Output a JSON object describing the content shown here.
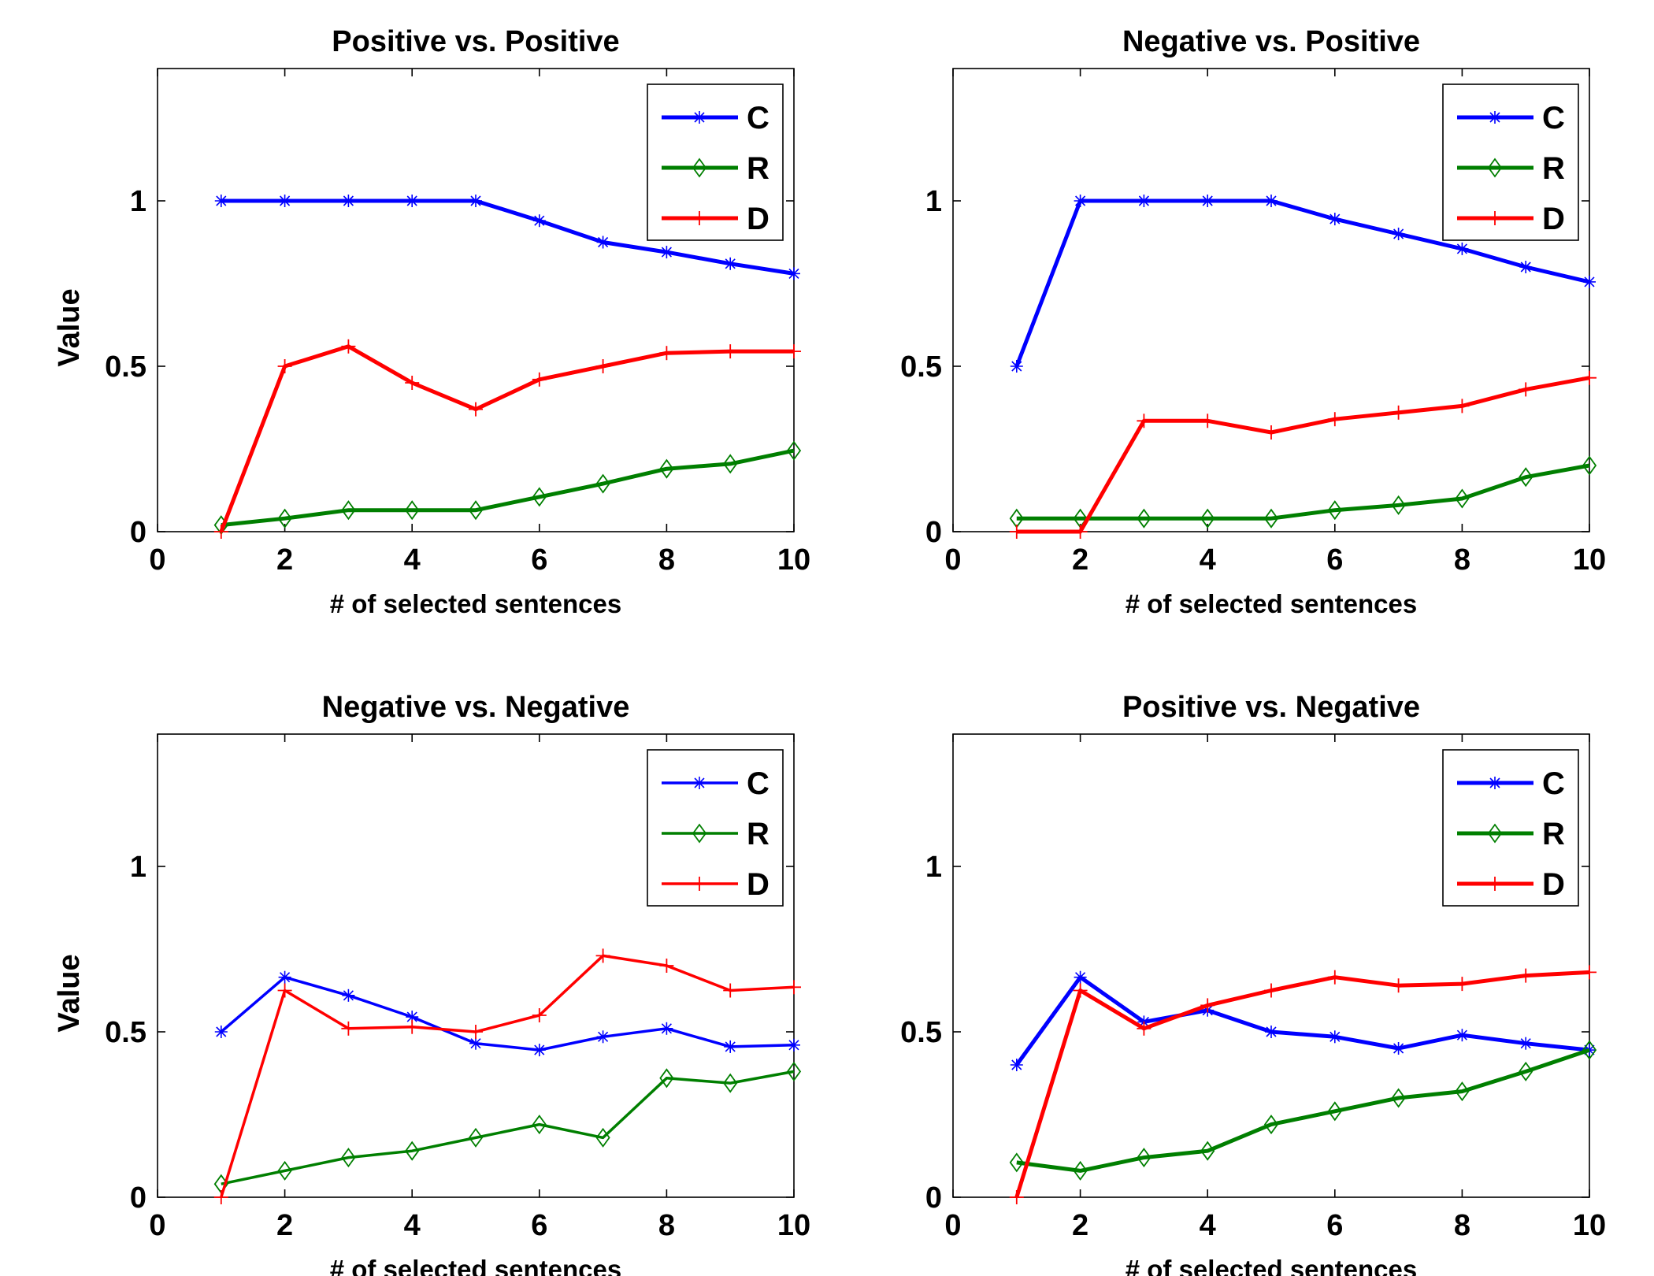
{
  "chart_data": [
    {
      "type": "line",
      "title": "Positive vs. Positive",
      "xlabel": "# of selected sentences",
      "ylabel": "Value",
      "xlim": [
        0,
        10
      ],
      "ylim": [
        0,
        1.4
      ],
      "xticks": [
        "0",
        "2",
        "4",
        "6",
        "8",
        "10"
      ],
      "yticks": [
        "0",
        "0.5",
        "1"
      ],
      "legend": "top-right",
      "grid": false,
      "x": [
        1,
        2,
        3,
        4,
        5,
        6,
        7,
        8,
        9,
        10
      ],
      "series": [
        {
          "name": "C",
          "color": "#0000ff",
          "marker": "asterisk",
          "values": [
            1.0,
            1.0,
            1.0,
            1.0,
            1.0,
            0.94,
            0.875,
            0.845,
            0.81,
            0.78
          ]
        },
        {
          "name": "R",
          "color": "#007f00",
          "marker": "diamond",
          "values": [
            0.02,
            0.04,
            0.065,
            0.065,
            0.065,
            0.105,
            0.145,
            0.19,
            0.205,
            0.245
          ]
        },
        {
          "name": "D",
          "color": "#ff0000",
          "marker": "plus",
          "values": [
            0.0,
            0.5,
            0.56,
            0.45,
            0.37,
            0.46,
            0.5,
            0.54,
            0.545,
            0.545
          ]
        }
      ]
    },
    {
      "type": "line",
      "title": "Negative vs. Positive",
      "xlabel": "# of selected sentences",
      "ylabel": "",
      "xlim": [
        0,
        10
      ],
      "ylim": [
        0,
        1.4
      ],
      "xticks": [
        "0",
        "2",
        "4",
        "6",
        "8",
        "10"
      ],
      "yticks": [
        "0",
        "0.5",
        "1"
      ],
      "legend": "top-right",
      "grid": false,
      "x": [
        1,
        2,
        3,
        4,
        5,
        6,
        7,
        8,
        9,
        10
      ],
      "series": [
        {
          "name": "C",
          "color": "#0000ff",
          "marker": "asterisk",
          "values": [
            0.5,
            1.0,
            1.0,
            1.0,
            1.0,
            0.945,
            0.9,
            0.855,
            0.8,
            0.755
          ]
        },
        {
          "name": "R",
          "color": "#007f00",
          "marker": "diamond",
          "values": [
            0.04,
            0.04,
            0.04,
            0.04,
            0.04,
            0.065,
            0.08,
            0.1,
            0.165,
            0.2
          ]
        },
        {
          "name": "D",
          "color": "#ff0000",
          "marker": "plus",
          "values": [
            0.0,
            0.0,
            0.335,
            0.335,
            0.3,
            0.34,
            0.36,
            0.38,
            0.43,
            0.465
          ]
        }
      ]
    },
    {
      "type": "line",
      "title": "Negative vs. Negative",
      "xlabel": "# of selected sentences",
      "ylabel": "Value",
      "xlim": [
        0,
        10
      ],
      "ylim": [
        0,
        1.4
      ],
      "xticks": [
        "0",
        "2",
        "4",
        "6",
        "8",
        "10"
      ],
      "yticks": [
        "0",
        "0.5",
        "1"
      ],
      "legend": "top-right",
      "grid": false,
      "x": [
        1,
        2,
        3,
        4,
        5,
        6,
        7,
        8,
        9,
        10
      ],
      "series": [
        {
          "name": "C",
          "color": "#0000ff",
          "marker": "asterisk",
          "values": [
            0.5,
            0.665,
            0.61,
            0.545,
            0.465,
            0.445,
            0.485,
            0.51,
            0.455,
            0.46
          ]
        },
        {
          "name": "R",
          "color": "#007f00",
          "marker": "diamond",
          "values": [
            0.04,
            0.08,
            0.12,
            0.14,
            0.18,
            0.22,
            0.18,
            0.36,
            0.345,
            0.38
          ]
        },
        {
          "name": "D",
          "color": "#ff0000",
          "marker": "plus",
          "values": [
            0.0,
            0.625,
            0.51,
            0.515,
            0.5,
            0.55,
            0.73,
            0.7,
            0.625,
            0.635
          ]
        }
      ]
    },
    {
      "type": "line",
      "title": "Positive vs. Negative",
      "xlabel": "# of selected sentences",
      "ylabel": "",
      "xlim": [
        0,
        10
      ],
      "ylim": [
        0,
        1.4
      ],
      "xticks": [
        "0",
        "2",
        "4",
        "6",
        "8",
        "10"
      ],
      "yticks": [
        "0",
        "0.5",
        "1"
      ],
      "legend": "top-right",
      "grid": false,
      "x": [
        1,
        2,
        3,
        4,
        5,
        6,
        7,
        8,
        9,
        10
      ],
      "series": [
        {
          "name": "C",
          "color": "#0000ff",
          "marker": "asterisk",
          "values": [
            0.4,
            0.665,
            0.53,
            0.565,
            0.5,
            0.485,
            0.45,
            0.49,
            0.465,
            0.445
          ]
        },
        {
          "name": "R",
          "color": "#007f00",
          "marker": "diamond",
          "values": [
            0.105,
            0.08,
            0.12,
            0.14,
            0.22,
            0.26,
            0.3,
            0.32,
            0.38,
            0.445
          ]
        },
        {
          "name": "D",
          "color": "#ff0000",
          "marker": "plus",
          "values": [
            0.0,
            0.625,
            0.51,
            0.58,
            0.625,
            0.665,
            0.64,
            0.645,
            0.67,
            0.68
          ]
        }
      ]
    }
  ]
}
